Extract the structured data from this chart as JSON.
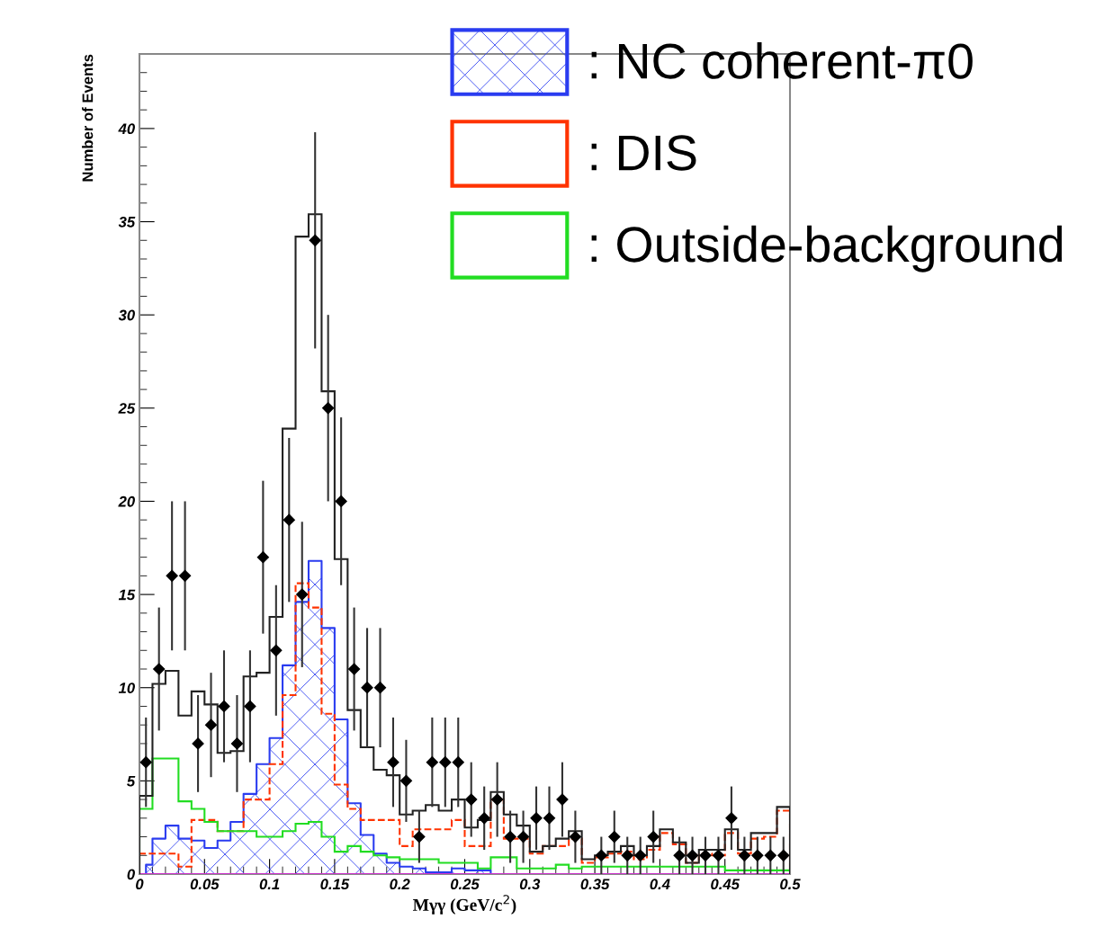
{
  "chart_data": {
    "type": "histogram",
    "xlabel": "Mγγ (GeV/c$^{2}$)",
    "ylabel": "Number of Events",
    "bins": [
      0,
      0.01,
      0.02,
      0.03,
      0.04,
      0.05,
      0.06,
      0.07,
      0.08,
      0.09,
      0.1,
      0.11,
      0.12,
      0.13,
      0.14,
      0.15,
      0.16,
      0.17,
      0.18,
      0.19,
      0.2,
      0.21,
      0.22,
      0.23,
      0.24,
      0.25,
      0.26,
      0.27,
      0.28,
      0.29,
      0.3,
      0.31,
      0.32,
      0.33,
      0.34,
      0.35,
      0.36,
      0.37,
      0.38,
      0.39,
      0.4,
      0.41,
      0.42,
      0.43,
      0.44,
      0.45,
      0.46,
      0.47,
      0.48,
      0.49,
      0.5
    ],
    "series": [
      {
        "type": "area",
        "name": ": NC coherent-π0",
        "color": "#2a3cf0",
        "x": [
          0.005,
          0.015,
          0.025,
          0.035,
          0.045,
          0.055,
          0.065,
          0.075,
          0.085,
          0.095,
          0.105,
          0.115,
          0.125,
          0.135,
          0.145,
          0.155,
          0.165,
          0.175,
          0.185,
          0.195,
          0.205,
          0.215,
          0.225,
          0.235,
          0.245,
          0.255,
          0.265,
          0.275,
          0.285,
          0.295,
          0.305,
          0.315,
          0.325,
          0.335,
          0.345,
          0.355,
          0.365,
          0.375,
          0.385,
          0.395,
          0.405,
          0.415,
          0.425,
          0.435,
          0.445,
          0.455,
          0.465,
          0.475,
          0.485,
          0.495
        ],
        "values": [
          0.5,
          1.9,
          2.6,
          1.9,
          1.8,
          1.4,
          1.8,
          2.8,
          4.3,
          5.9,
          7.3,
          11.2,
          14.6,
          16.8,
          13.2,
          8.3,
          3.8,
          2.1,
          1.1,
          0.6,
          0.4,
          0.3,
          0.1,
          0.1,
          0.3,
          0.2,
          0.2,
          0,
          0,
          0,
          0,
          0,
          0,
          0,
          0,
          0,
          0,
          0,
          0,
          0,
          0,
          0,
          0,
          0,
          0,
          0,
          0,
          0,
          0,
          0
        ]
      },
      {
        "name": ": DIS",
        "color": "#ff3300",
        "line_style": "dashed",
        "values": [
          1.1,
          1.1,
          1.1,
          0.4,
          2.9,
          2.9,
          2.3,
          2.3,
          4.0,
          4.0,
          5.9,
          9.6,
          15.6,
          14.3,
          8.6,
          4.8,
          3.5,
          2.9,
          2.9,
          2.9,
          1.5,
          2.4,
          2.4,
          2.4,
          2.9,
          1.5,
          1.5,
          4.0,
          1.9,
          1.9,
          1.1,
          1.5,
          1.5,
          1.9,
          0.6,
          0.9,
          1.1,
          1.2,
          0.8,
          1.3,
          2.2,
          1.6,
          0.6,
          1.1,
          1.0,
          2.2,
          1.1,
          1.9,
          2.0,
          3.4
        ]
      },
      {
        "name": ": Outside-background",
        "color": "#22dd22",
        "values": [
          3.5,
          6.2,
          6.2,
          3.9,
          3.5,
          2.8,
          2.3,
          2.3,
          2.3,
          2.0,
          2.0,
          2.3,
          2.7,
          2.8,
          2.0,
          1.2,
          1.5,
          1.2,
          1.0,
          0.9,
          0.8,
          0.8,
          0.8,
          0.6,
          0.6,
          0.6,
          0.3,
          0.9,
          0.9,
          0.3,
          0.3,
          0.3,
          0.5,
          0.3,
          0.4,
          0.4,
          0.4,
          0.4,
          0.4,
          0.4,
          0.4,
          0.4,
          0.4,
          0.4,
          0.4,
          0.2,
          0.2,
          0.2,
          0.2,
          0.2
        ]
      },
      {
        "color": "#cc33cc",
        "values": [
          0,
          0,
          0,
          0,
          0,
          0,
          0,
          0,
          0,
          0,
          0,
          0,
          0,
          0,
          0,
          0,
          0,
          0,
          0,
          0,
          0,
          0,
          0,
          0,
          0,
          0,
          0,
          0,
          0,
          0,
          0,
          0,
          0,
          0,
          0,
          0,
          0,
          0,
          0,
          0,
          0,
          0,
          0,
          0,
          0,
          0,
          0,
          0,
          0,
          0
        ]
      },
      {
        "color": "#222222",
        "values": [
          4.2,
          10.2,
          10.9,
          8.5,
          9.8,
          9.1,
          6.5,
          6.6,
          10.6,
          10.8,
          13.8,
          23.9,
          34.2,
          35.4,
          25.9,
          16.9,
          8.8,
          6.8,
          5.6,
          5.3,
          3.2,
          3.4,
          3.7,
          3.4,
          4.0,
          2.5,
          2.9,
          4.4,
          3.2,
          2.6,
          1.2,
          1.5,
          1.9,
          2.3,
          0.8,
          1.0,
          1.2,
          1.5,
          1.0,
          1.5,
          2.4,
          1.7,
          0.6,
          1.3,
          1.3,
          2.4,
          1.3,
          2.2,
          2.2,
          3.6
        ]
      },
      {
        "type": "scatter",
        "color": "#000000",
        "marker": "diamond",
        "x": [
          0.005,
          0.015,
          0.025,
          0.035,
          0.045,
          0.055,
          0.065,
          0.075,
          0.085,
          0.095,
          0.105,
          0.115,
          0.125,
          0.135,
          0.145,
          0.155,
          0.165,
          0.175,
          0.185,
          0.195,
          0.205,
          0.215,
          0.225,
          0.235,
          0.245,
          0.255,
          0.265,
          0.275,
          0.285,
          0.295,
          0.305,
          0.315,
          0.325,
          0.335,
          0.345,
          0.355,
          0.365,
          0.375,
          0.385,
          0.395,
          0.405,
          0.415,
          0.425,
          0.435,
          0.445,
          0.455,
          0.465,
          0.475,
          0.485,
          0.495
        ],
        "values": [
          6,
          11,
          16,
          16,
          7,
          8,
          9,
          7,
          9,
          17,
          12,
          19,
          15,
          34,
          25,
          20,
          11,
          10,
          10,
          6,
          5,
          2,
          6,
          6,
          6,
          4,
          3,
          4,
          2,
          2,
          3,
          3,
          4,
          2,
          null,
          1,
          2,
          1,
          1,
          2,
          null,
          1,
          1,
          1,
          1,
          3,
          1,
          1,
          1,
          1
        ],
        "errors": [
          2.4,
          3.3,
          4,
          4,
          2.6,
          2.8,
          3,
          2.6,
          3,
          4.1,
          3.5,
          4.4,
          3.9,
          5.8,
          5,
          4.5,
          3.3,
          3.2,
          3.2,
          2.4,
          2.2,
          1.4,
          2.4,
          2.4,
          2.4,
          2,
          1.7,
          2,
          1.4,
          1.4,
          1.7,
          1.7,
          2,
          1.4,
          null,
          1,
          1.4,
          1,
          1,
          1.4,
          null,
          1,
          1,
          1,
          1,
          1.7,
          1,
          1,
          1,
          1
        ]
      }
    ],
    "xlim": [
      0,
      0.5
    ],
    "xticks": [
      0,
      0.05,
      0.1,
      0.15,
      0.2,
      0.25,
      0.3,
      0.35,
      0.4,
      0.45,
      0.5
    ],
    "ylim": [
      0,
      44
    ],
    "yticks": [
      0,
      5,
      10,
      15,
      20,
      25,
      30,
      35,
      40
    ],
    "grid": false,
    "legend": "top right"
  }
}
